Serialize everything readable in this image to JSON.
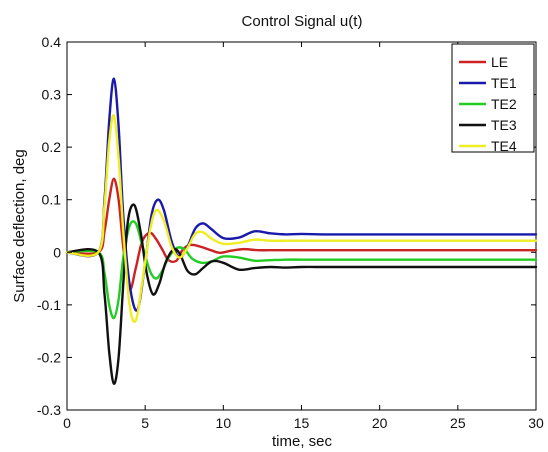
{
  "chart_data": {
    "type": "line",
    "title": "Control Signal u(t)",
    "xlabel": "time, sec",
    "ylabel": "Surface deflection, deg",
    "xlim": [
      0,
      30
    ],
    "ylim": [
      -0.3,
      0.4
    ],
    "xticks": [
      0,
      5,
      10,
      15,
      20,
      25,
      30
    ],
    "yticks": [
      -0.3,
      -0.2,
      -0.1,
      0,
      0.1,
      0.2,
      0.3,
      0.4
    ],
    "xtick_labels": [
      "0",
      "5",
      "10",
      "15",
      "20",
      "25",
      "30"
    ],
    "ytick_labels": [
      "-0.3",
      "-0.2",
      "-0.1",
      "0",
      "0.1",
      "0.2",
      "0.3",
      "0.4"
    ],
    "grid": false,
    "legend_position": "top-right",
    "series": [
      {
        "name": "LE",
        "color": "#cc2222",
        "x": [
          0,
          2,
          2.4,
          2.7,
          3.0,
          3.3,
          3.6,
          4.0,
          4.4,
          4.8,
          5.3,
          5.7,
          6.1,
          6.5,
          7.0,
          7.4,
          7.9,
          8.5,
          9.2,
          9.8,
          10.5,
          11.3,
          12.2,
          13.3,
          14.5,
          16,
          18,
          20,
          25,
          30
        ],
        "y": [
          0,
          0,
          0.04,
          0.1,
          0.14,
          0.1,
          0.01,
          -0.07,
          -0.03,
          0.02,
          0.037,
          0.025,
          0.005,
          -0.015,
          -0.016,
          0.005,
          0.014,
          0.011,
          0.004,
          -0.001,
          0.003,
          0.006,
          0.004,
          0.004,
          0.004,
          0.004,
          0.004,
          0.004,
          0.004,
          0.004
        ]
      },
      {
        "name": "TE1",
        "color": "#1a1aaa",
        "x": [
          0,
          2,
          2.4,
          2.7,
          3.0,
          3.3,
          3.6,
          4.0,
          4.5,
          5.0,
          5.4,
          5.8,
          6.2,
          6.7,
          7.2,
          7.7,
          8.2,
          8.7,
          9.2,
          10.0,
          11.0,
          12.0,
          13.0,
          14.0,
          15.0,
          16.5,
          18,
          20,
          25,
          30
        ],
        "y": [
          0,
          0,
          0.1,
          0.25,
          0.33,
          0.24,
          0.07,
          -0.06,
          -0.11,
          -0.02,
          0.07,
          0.1,
          0.08,
          0.02,
          -0.01,
          0.01,
          0.045,
          0.055,
          0.045,
          0.027,
          0.028,
          0.04,
          0.036,
          0.034,
          0.035,
          0.034,
          0.034,
          0.034,
          0.034,
          0.034
        ]
      },
      {
        "name": "TE2",
        "color": "#22cc22",
        "x": [
          0,
          2,
          2.4,
          2.7,
          3.0,
          3.3,
          3.6,
          4.0,
          4.4,
          4.8,
          5.3,
          5.7,
          6.1,
          6.5,
          7.0,
          7.5,
          8.0,
          8.6,
          9.2,
          10.0,
          11.0,
          12.0,
          13.0,
          14.0,
          15.0,
          16,
          18,
          20,
          25,
          30
        ],
        "y": [
          0,
          0,
          -0.04,
          -0.1,
          -0.125,
          -0.09,
          -0.01,
          0.05,
          0.055,
          0.015,
          -0.035,
          -0.05,
          -0.035,
          -0.01,
          0.008,
          0.006,
          -0.012,
          -0.02,
          -0.018,
          -0.008,
          -0.01,
          -0.016,
          -0.015,
          -0.014,
          -0.014,
          -0.014,
          -0.014,
          -0.014,
          -0.014,
          -0.014
        ]
      },
      {
        "name": "TE3",
        "color": "#111111",
        "x": [
          0,
          2,
          2.4,
          2.7,
          3.0,
          3.3,
          3.6,
          3.9,
          4.3,
          4.7,
          5.1,
          5.5,
          5.9,
          6.3,
          6.8,
          7.2,
          7.7,
          8.2,
          8.7,
          9.3,
          10.0,
          11.0,
          12.0,
          13.0,
          14.0,
          15.0,
          16.5,
          18,
          25,
          30
        ],
        "y": [
          0,
          0,
          -0.08,
          -0.19,
          -0.25,
          -0.2,
          -0.06,
          0.06,
          0.09,
          0.04,
          -0.04,
          -0.08,
          -0.06,
          -0.02,
          0.005,
          -0.002,
          -0.035,
          -0.042,
          -0.03,
          -0.017,
          -0.02,
          -0.033,
          -0.03,
          -0.028,
          -0.029,
          -0.028,
          -0.028,
          -0.028,
          -0.028,
          -0.028
        ]
      },
      {
        "name": "TE4",
        "color": "#eeee22",
        "x": [
          0,
          2,
          2.4,
          2.7,
          3.0,
          3.3,
          3.6,
          4.0,
          4.4,
          4.8,
          5.3,
          5.7,
          6.2,
          6.7,
          7.2,
          7.7,
          8.2,
          8.7,
          9.3,
          10.0,
          11.0,
          12.0,
          13.0,
          14.0,
          15.0,
          16.5,
          18,
          20,
          25,
          30
        ],
        "y": [
          0,
          0,
          0.09,
          0.21,
          0.26,
          0.18,
          0.04,
          -0.1,
          -0.13,
          -0.06,
          0.04,
          0.08,
          0.06,
          0.01,
          -0.01,
          0.008,
          0.035,
          0.038,
          0.025,
          0.016,
          0.018,
          0.024,
          0.022,
          0.022,
          0.022,
          0.022,
          0.022,
          0.022,
          0.022,
          0.022
        ]
      }
    ]
  }
}
